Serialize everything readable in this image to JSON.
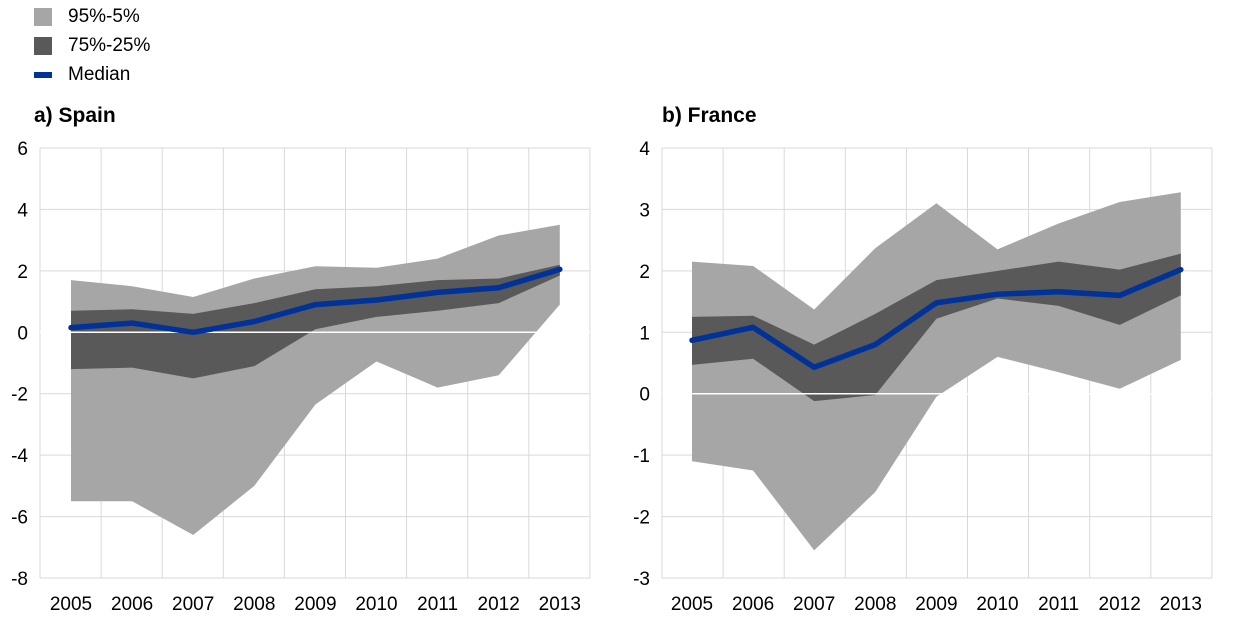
{
  "legend": {
    "items": [
      {
        "label": "95%-5%",
        "color": "#a6a6a6",
        "kind": "box"
      },
      {
        "label": "75%-25%",
        "color": "#595959",
        "kind": "box"
      },
      {
        "label": "Median",
        "color": "#003299",
        "kind": "line"
      }
    ]
  },
  "chart_data": [
    {
      "type": "area",
      "title": "a) Spain",
      "x": [
        "2005",
        "2006",
        "2007",
        "2008",
        "2009",
        "2010",
        "2011",
        "2012",
        "2013"
      ],
      "ylim": [
        -8,
        6
      ],
      "yticks": [
        "6",
        "4",
        "2",
        "0",
        "-2",
        "-4",
        "-6",
        "-8"
      ],
      "ytick_values": [
        6,
        4,
        2,
        0,
        -2,
        -4,
        -6,
        -8
      ],
      "grid": true,
      "series": [
        {
          "name": "95%-5%",
          "upper": [
            1.7,
            1.5,
            1.15,
            1.75,
            2.15,
            2.1,
            2.4,
            3.15,
            3.5
          ],
          "lower": [
            -5.5,
            -5.5,
            -6.6,
            -5.0,
            -2.35,
            -0.95,
            -1.8,
            -1.4,
            0.9
          ]
        },
        {
          "name": "75%-25%",
          "upper": [
            0.7,
            0.75,
            0.6,
            0.95,
            1.4,
            1.5,
            1.7,
            1.75,
            2.2
          ],
          "lower": [
            -1.2,
            -1.15,
            -1.5,
            -1.1,
            0.1,
            0.5,
            0.7,
            0.95,
            1.85
          ]
        },
        {
          "name": "Median",
          "values": [
            0.15,
            0.3,
            0.0,
            0.35,
            0.9,
            1.05,
            1.3,
            1.45,
            2.05
          ]
        }
      ]
    },
    {
      "type": "area",
      "title": "b) France",
      "x": [
        "2005",
        "2006",
        "2007",
        "2008",
        "2009",
        "2010",
        "2011",
        "2012",
        "2013"
      ],
      "ylim": [
        -3,
        4
      ],
      "yticks": [
        "4",
        "3",
        "2",
        "1",
        "0",
        "-1",
        "-2",
        "-3"
      ],
      "ytick_values": [
        4,
        3,
        2,
        1,
        0,
        -1,
        -2,
        -3
      ],
      "grid": true,
      "series": [
        {
          "name": "95%-5%",
          "upper": [
            2.15,
            2.08,
            1.37,
            2.37,
            3.1,
            2.35,
            2.77,
            3.12,
            3.28
          ],
          "lower": [
            -1.1,
            -1.25,
            -2.55,
            -1.6,
            -0.05,
            0.6,
            0.35,
            0.08,
            0.55
          ]
        },
        {
          "name": "75%-25%",
          "upper": [
            1.25,
            1.27,
            0.8,
            1.3,
            1.85,
            2.0,
            2.15,
            2.02,
            2.28
          ],
          "lower": [
            0.47,
            0.57,
            -0.12,
            -0.02,
            1.22,
            1.55,
            1.43,
            1.12,
            1.6
          ]
        },
        {
          "name": "Median",
          "values": [
            0.87,
            1.08,
            0.43,
            0.8,
            1.48,
            1.62,
            1.66,
            1.6,
            2.02
          ]
        }
      ]
    }
  ]
}
